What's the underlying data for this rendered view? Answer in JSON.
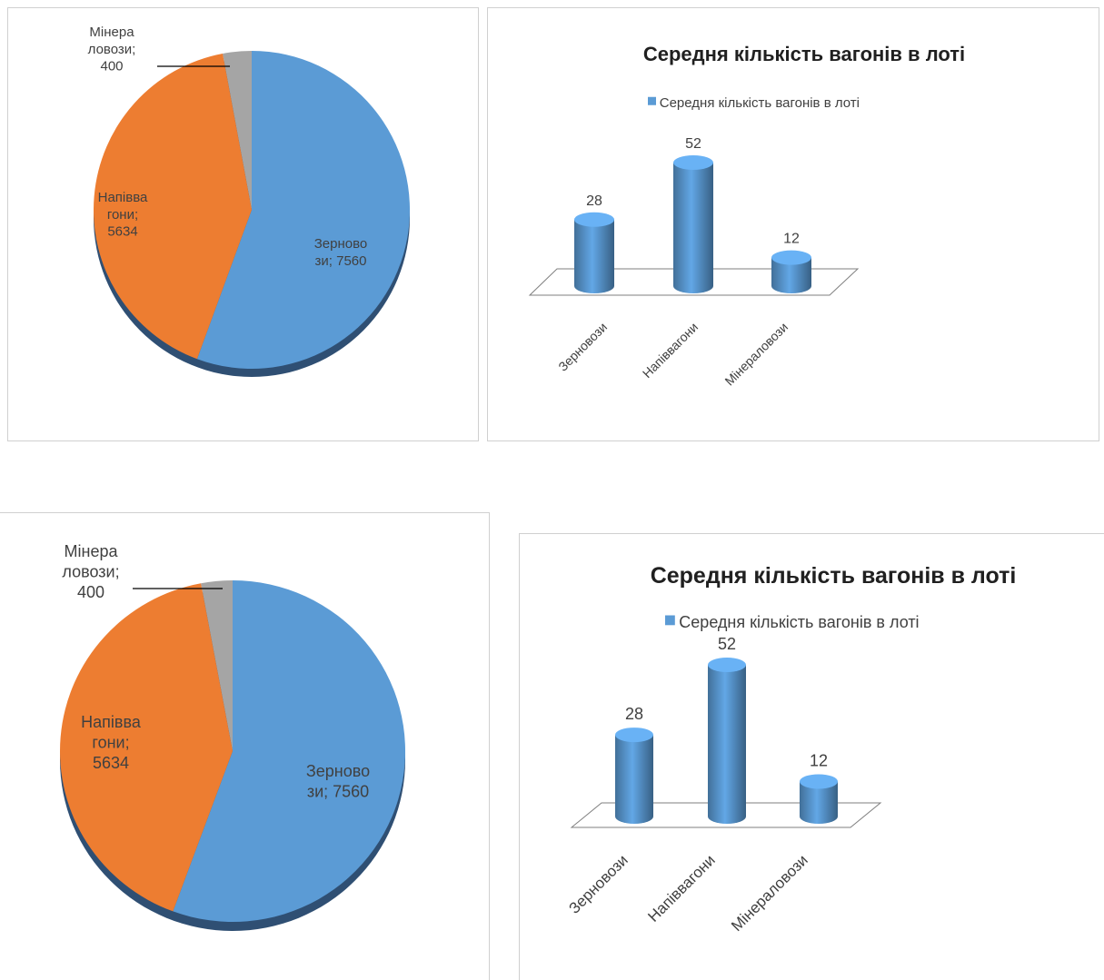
{
  "chart_data": [
    {
      "type": "pie",
      "labels": [
        "Зерновози",
        "Напіввагони",
        "Мінераловози"
      ],
      "label_lines": [
        [
          "Зерново",
          "зи; 7560"
        ],
        [
          "Напівва",
          "гони;",
          "5634"
        ],
        [
          "Мінера",
          "ловози;",
          "400"
        ]
      ],
      "values": [
        7560,
        5634,
        400
      ],
      "colors": [
        "#5b9bd5",
        "#ed7d31",
        "#a5a5a5"
      ]
    },
    {
      "type": "bar",
      "title": "Середня кількість вагонів в лоті",
      "categories": [
        "Зерновози",
        "Напіввагони",
        "Мінераловози"
      ],
      "series": [
        {
          "name": "Середня кількість вагонів в лоті",
          "values": [
            28,
            52,
            12
          ]
        }
      ],
      "ylim": [
        0,
        52
      ],
      "legend": "top",
      "color": "#5b9bd5"
    },
    {
      "type": "pie",
      "labels": [
        "Зерновози",
        "Напіввагони",
        "Мінераловози"
      ],
      "label_lines": [
        [
          "Зерново",
          "зи; 7560"
        ],
        [
          "Напівва",
          "гони;",
          "5634"
        ],
        [
          "Мінера",
          "ловози;",
          "400"
        ]
      ],
      "values": [
        7560,
        5634,
        400
      ],
      "colors": [
        "#5b9bd5",
        "#ed7d31",
        "#a5a5a5"
      ]
    },
    {
      "type": "bar",
      "title": "Середня кількість вагонів в лоті",
      "categories": [
        "Зерновози",
        "Напіввагони",
        "Мінераловози"
      ],
      "series": [
        {
          "name": "Середня кількість вагонів в лоті",
          "values": [
            28,
            52,
            12
          ]
        }
      ],
      "ylim": [
        0,
        52
      ],
      "legend": "top",
      "color": "#5b9bd5"
    }
  ]
}
